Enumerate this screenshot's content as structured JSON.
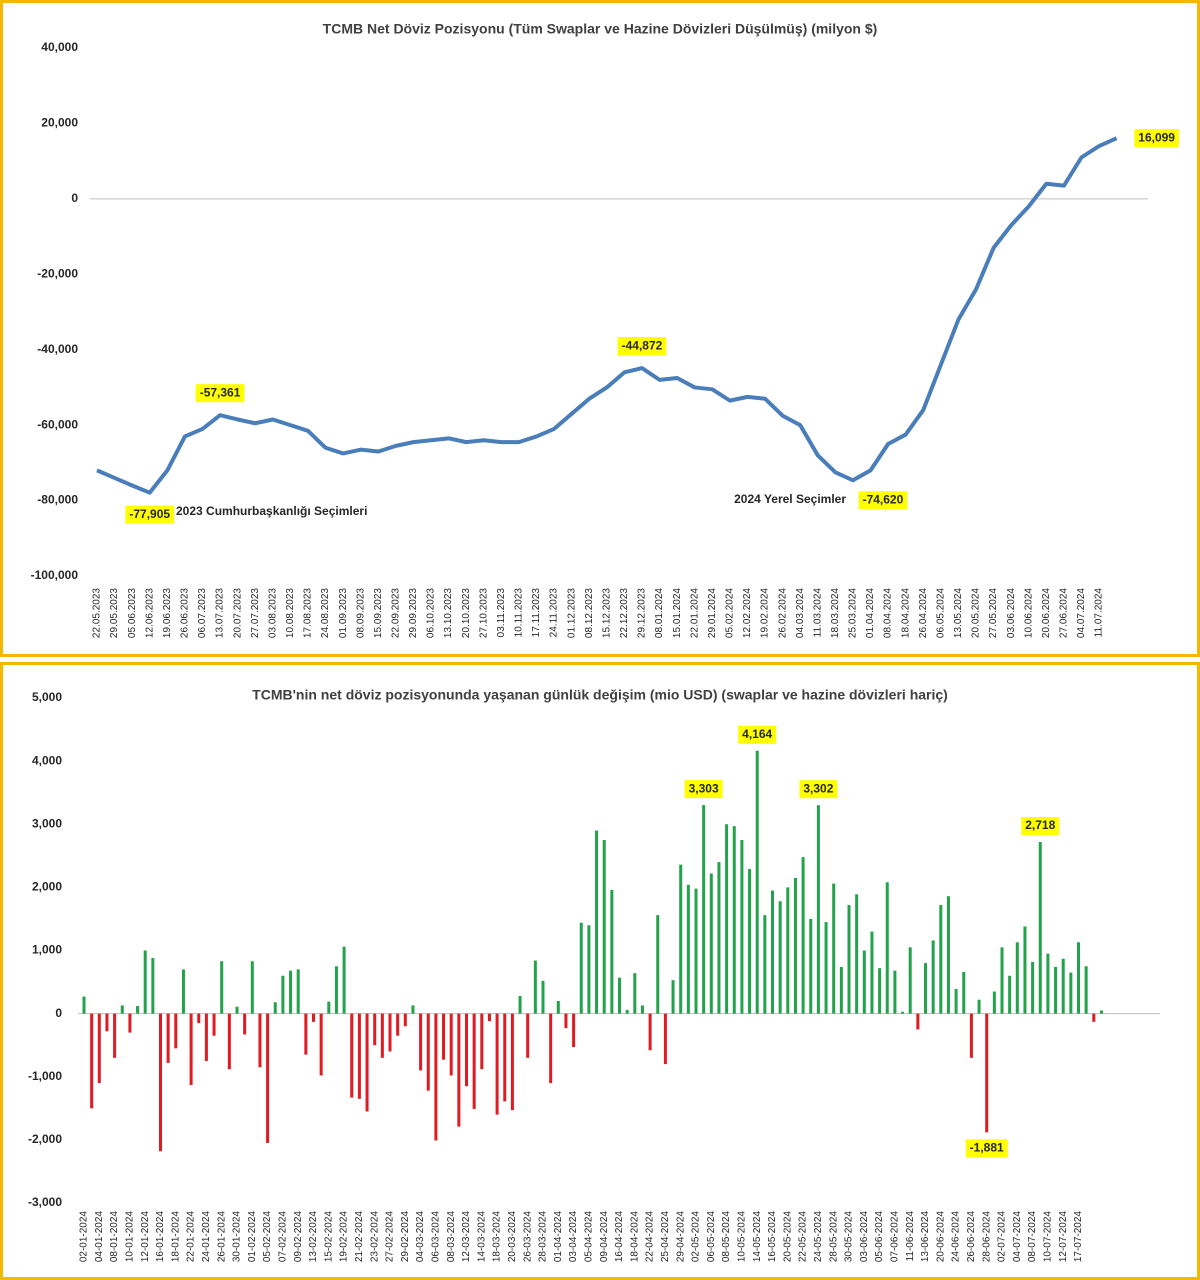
{
  "chart_data": [
    {
      "type": "line",
      "title": "TCMB Net Döviz Pozisyonu (Tüm Swaplar ve Hazine Dövizleri Düşülmüş) (milyon $)",
      "categories": [
        "22.05.2023",
        "29.05.2023",
        "05.06.2023",
        "12.06.2023",
        "19.06.2023",
        "26.06.2023",
        "06.07.2023",
        "13.07.2023",
        "20.07.2023",
        "27.07.2023",
        "03.08.2023",
        "10.08.2023",
        "17.08.2023",
        "24.08.2023",
        "01.09.2023",
        "08.09.2023",
        "15.09.2023",
        "22.09.2023",
        "29.09.2023",
        "06.10.2023",
        "13.10.2023",
        "20.10.2023",
        "27.10.2023",
        "03.11.2023",
        "10.11.2023",
        "17.11.2023",
        "24.11.2023",
        "01.12.2023",
        "08.12.2023",
        "15.12.2023",
        "22.12.2023",
        "29.12.2023",
        "08.01.2024",
        "15.01.2024",
        "22.01.2024",
        "29.01.2024",
        "05.02.2024",
        "12.02.2024",
        "19.02.2024",
        "26.02.2024",
        "04.03.2024",
        "11.03.2024",
        "18.03.2024",
        "25.03.2024",
        "01.04.2024",
        "08.04.2024",
        "18.04.2024",
        "26.04.2024",
        "06.05.2024",
        "13.05.2024",
        "20.05.2024",
        "27.05.2024",
        "03.06.2024",
        "10.06.2024",
        "20.06.2024",
        "27.06.2024",
        "04.07.2024",
        "11.07.2024",
        null
      ],
      "series": [
        {
          "name": "TCMB Net Döviz Pozisyonu",
          "color": "#4a7ebb",
          "values": [
            -72000,
            -74000,
            -76000,
            -77905,
            -72000,
            -63000,
            -61000,
            -57361,
            -58500,
            -59500,
            -58500,
            -60000,
            -61500,
            -66000,
            -67500,
            -66500,
            -67000,
            -65500,
            -64500,
            -64000,
            -63500,
            -64500,
            -64000,
            -64500,
            -64500,
            -63000,
            -61000,
            -57000,
            -53000,
            -50000,
            -46000,
            -44872,
            -48000,
            -47500,
            -50000,
            -50500,
            -53500,
            -52500,
            -53000,
            -57500,
            -60000,
            -68000,
            -72500,
            -74620,
            -72000,
            -65000,
            -62500,
            -56000,
            -44000,
            -32000,
            -24000,
            -13000,
            -7000,
            -2000,
            4000,
            3500,
            11000,
            14000,
            16099
          ],
          "value_labels": [
            null,
            null,
            null,
            "-77,905",
            null,
            null,
            null,
            "-57,361",
            null,
            null,
            null,
            null,
            null,
            null,
            null,
            null,
            null,
            null,
            null,
            null,
            null,
            null,
            null,
            null,
            null,
            null,
            null,
            null,
            null,
            null,
            null,
            "-44,872",
            null,
            null,
            null,
            null,
            null,
            null,
            null,
            null,
            null,
            null,
            null,
            "-74,620",
            null,
            null,
            null,
            null,
            null,
            null,
            null,
            null,
            null,
            null,
            null,
            null,
            null,
            null,
            "16,099"
          ]
        }
      ],
      "annotations": [
        "2023 Cumhurbaşkanlığı Seçimleri",
        "2024 Yerel Seçimler"
      ],
      "annotation_color": "#e30613",
      "label_box_color": "#ffff00",
      "ylim": [
        -100000,
        40000
      ],
      "yticks": [
        {
          "value": -100000,
          "label": "-100,000"
        },
        {
          "value": -80000,
          "label": "-80,000"
        },
        {
          "value": -60000,
          "label": "-60,000"
        },
        {
          "value": -40000,
          "label": "-40,000"
        },
        {
          "value": -20000,
          "label": "-20,000"
        },
        0,
        {
          "value": 20000,
          "label": "20,000"
        },
        {
          "value": 40000,
          "label": "40,000"
        }
      ],
      "negative_tick_color": "#e30613",
      "grid": false
    },
    {
      "type": "bar",
      "title": "TCMB'nin net döviz pozisyonunda yaşanan günlük değişim (mio USD) (swaplar ve hazine dövizleri hariç)",
      "categories": [
        "02-01-2024",
        null,
        "04-01-2024",
        null,
        "08-01-2024",
        null,
        "10-01-2024",
        null,
        "12-01-2024",
        null,
        "16-01-2024",
        null,
        "18-01-2024",
        null,
        "22-01-2024",
        null,
        "24-01-2024",
        null,
        "26-01-2024",
        null,
        "30-01-2024",
        null,
        "01-02-2024",
        null,
        "05-02-2024",
        null,
        "07-02-2024",
        null,
        "09-02-2024",
        null,
        "13-02-2024",
        null,
        "15-02-2024",
        null,
        "19-02-2024",
        null,
        "21-02-2024",
        null,
        "23-02-2024",
        null,
        "27-02-2024",
        null,
        "29-02-2024",
        null,
        "04-03-2024",
        null,
        "06-03-2024",
        null,
        "08-03-2024",
        null,
        "12-03-2024",
        null,
        "14-03-2024",
        null,
        "18-03-2024",
        null,
        "20-03-2024",
        null,
        "26-03-2024",
        null,
        "28-03-2024",
        null,
        "01-04-2024",
        null,
        "03-04-2024",
        null,
        "05-04-2024",
        null,
        "09-04-2024",
        null,
        "16-04-2024",
        null,
        "18-04-2024",
        null,
        "22-04-2024",
        null,
        "25-04-2024",
        null,
        "29-04-2024",
        null,
        "02-05-2024",
        null,
        "06-05-2024",
        null,
        "08-05-2024",
        null,
        "10-05-2024",
        null,
        "14-05-2024",
        null,
        "16-05-2024",
        null,
        "20-05-2024",
        null,
        "22-05-2024",
        null,
        "24-05-2024",
        null,
        "28-05-2024",
        null,
        "30-05-2024",
        null,
        "03-06-2024",
        null,
        "05-06-2024",
        null,
        "07-06-2024",
        null,
        "11-06-2024",
        null,
        "13-06-2024",
        null,
        "20-06-2024",
        null,
        "24-06-2024",
        null,
        "26-06-2024",
        null,
        "28-06-2024",
        null,
        "02-07-2024",
        null,
        "04-07-2024",
        null,
        "08-07-2024",
        null,
        "10-07-2024",
        null,
        "12-07-2024",
        null,
        "17-07-2024",
        null,
        null,
        null
      ],
      "values": [
        270,
        -1500,
        -1100,
        -280,
        -700,
        130,
        -300,
        120,
        1000,
        880,
        -2180,
        -780,
        -550,
        700,
        -1130,
        -150,
        -750,
        -350,
        830,
        -880,
        110,
        -330,
        830,
        -850,
        -2050,
        180,
        600,
        680,
        700,
        -650,
        -130,
        -980,
        190,
        750,
        1060,
        -1330,
        -1350,
        -1550,
        -500,
        -700,
        -600,
        -350,
        -200,
        130,
        -900,
        -1220,
        -2010,
        -730,
        -980,
        -1790,
        -1150,
        -1510,
        -880,
        -120,
        -1600,
        -1390,
        -1530,
        280,
        -700,
        840,
        520,
        -1100,
        200,
        -230,
        -530,
        1440,
        1400,
        2900,
        2750,
        1960,
        570,
        60,
        640,
        130,
        -580,
        1560,
        -800,
        530,
        2360,
        2040,
        1980,
        3303,
        2220,
        2400,
        3000,
        2970,
        2750,
        2290,
        4164,
        1560,
        1950,
        1780,
        2000,
        2150,
        2480,
        1500,
        3302,
        1450,
        2060,
        740,
        1720,
        1890,
        1000,
        1300,
        720,
        2080,
        680,
        30,
        1050,
        -250,
        800,
        1160,
        1720,
        1860,
        390,
        660,
        -700,
        220,
        -1881,
        350,
        1050,
        600,
        1130,
        1380,
        820,
        2718,
        950,
        740,
        870,
        650,
        1130,
        750,
        -130,
        50
      ],
      "value_labels": [
        null,
        null,
        null,
        null,
        null,
        null,
        null,
        null,
        null,
        null,
        null,
        null,
        null,
        null,
        null,
        null,
        null,
        null,
        null,
        null,
        null,
        null,
        null,
        null,
        null,
        null,
        null,
        null,
        null,
        null,
        null,
        null,
        null,
        null,
        null,
        null,
        null,
        null,
        null,
        null,
        null,
        null,
        null,
        null,
        null,
        null,
        null,
        null,
        null,
        null,
        null,
        null,
        null,
        null,
        null,
        null,
        null,
        null,
        null,
        null,
        null,
        null,
        null,
        null,
        null,
        null,
        null,
        null,
        null,
        null,
        null,
        null,
        null,
        null,
        null,
        null,
        null,
        null,
        null,
        null,
        null,
        "3,303",
        null,
        null,
        null,
        null,
        null,
        null,
        "4,164",
        null,
        null,
        null,
        null,
        null,
        null,
        null,
        "3,302",
        null,
        null,
        null,
        null,
        null,
        null,
        null,
        null,
        null,
        null,
        null,
        null,
        null,
        null,
        null,
        null,
        null,
        null,
        null,
        null,
        null,
        "-1,881",
        null,
        null,
        null,
        null,
        null,
        null,
        "2,718",
        null,
        null,
        null,
        null,
        null,
        null,
        null,
        null
      ],
      "colors": {
        "positive": "#22a34b",
        "negative": "#e11b22"
      },
      "label_box_color": "#ffff00",
      "ylim": [
        -3000,
        5000
      ],
      "yticks": [
        {
          "value": -3000,
          "label": "-3,000"
        },
        {
          "value": -2000,
          "label": "-2,000"
        },
        {
          "value": -1000,
          "label": "-1,000"
        },
        0,
        {
          "value": 1000,
          "label": "1,000"
        },
        {
          "value": 2000,
          "label": "2,000"
        },
        {
          "value": 3000,
          "label": "3,000"
        },
        {
          "value": 4000,
          "label": "4,000"
        },
        {
          "value": 5000,
          "label": "5,000"
        }
      ],
      "negative_tick_color": "#e30613",
      "grid": false
    }
  ]
}
